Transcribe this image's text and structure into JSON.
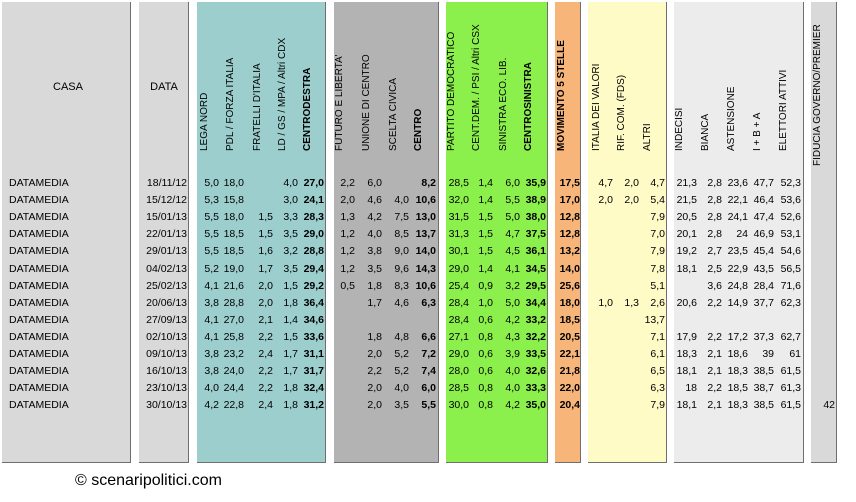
{
  "colors": {
    "casa": "#d9d9d9",
    "data": "#d9d9d9",
    "centrodestra": "#9dcece",
    "centro": "#b3b3b3",
    "centrosinistra": "#8bef4c",
    "m5s": "#f8b57a",
    "csx_small": "#fffbc7",
    "indecisi": "#ececec",
    "fiducia": "#d9d9d9"
  },
  "headers": {
    "casa": "CASA",
    "data": "DATA",
    "lega_nord": "LEGA NORD",
    "pdl": "PDL / FORZA ITALIA",
    "fdi": "FRATELLI D'ITALIA",
    "ld": "LD / GS / MPA / Altri CDX",
    "centrodestra": "CENTRODESTRA",
    "fli": "FUTURO E LIBERTA'",
    "udc": "UNIONE DI CENTRO",
    "sc": "SCELTA CIVICA",
    "centro": "CENTRO",
    "pd": "PARTITO DEMOCRATICO",
    "centdem": "CENT.DEM. / PSI / Altri CSX",
    "sel": "SINISTRA ECO. LIB.",
    "centrosinistra": "CENTROSINISTRA",
    "m5s": "MOVIMENTO 5 STELLE",
    "idv": "ITALIA DEI VALORI",
    "rif": "RIF. COM. (FDS)",
    "altri": "ALTRI",
    "indecisi": "INDECISI",
    "bianca": "BIANCA",
    "astensione": "ASTENSIONE",
    "iba": "I + B + A",
    "elettori": "ELETTORI ATTIVI",
    "fiducia": "FIDUCIA GOVERNO/PREMIER"
  },
  "rows": [
    {
      "casa": "DATAMEDIA",
      "data": "18/11/12",
      "ln": "5,0",
      "pdl": "18,0",
      "fdi": "",
      "ld": "4,0",
      "cdx": "27,0",
      "fli": "2,2",
      "udc": "6,0",
      "sc": "",
      "centro": "8,2",
      "pd": "28,5",
      "cd": "1,4",
      "sel": "6,0",
      "csx": "35,9",
      "m5s": "17,5",
      "idv": "4,7",
      "rif": "2,0",
      "altri": "4,7",
      "ind": "21,3",
      "bia": "2,8",
      "ast": "23,6",
      "iba": "47,7",
      "ele": "52,3",
      "fid": ""
    },
    {
      "casa": "DATAMEDIA",
      "data": "15/12/12",
      "ln": "5,3",
      "pdl": "15,8",
      "fdi": "",
      "ld": "3,0",
      "cdx": "24,1",
      "fli": "2,0",
      "udc": "4,6",
      "sc": "4,0",
      "centro": "10,6",
      "pd": "32,0",
      "cd": "1,4",
      "sel": "5,5",
      "csx": "38,9",
      "m5s": "17,0",
      "idv": "2,0",
      "rif": "2,0",
      "altri": "5,4",
      "ind": "21,5",
      "bia": "2,8",
      "ast": "22,1",
      "iba": "46,4",
      "ele": "53,6",
      "fid": ""
    },
    {
      "casa": "DATAMEDIA",
      "data": "15/01/13",
      "ln": "5,5",
      "pdl": "18,0",
      "fdi": "1,5",
      "ld": "3,3",
      "cdx": "28,3",
      "fli": "1,3",
      "udc": "4,2",
      "sc": "7,5",
      "centro": "13,0",
      "pd": "31,5",
      "cd": "1,5",
      "sel": "5,0",
      "csx": "38,0",
      "m5s": "12,8",
      "idv": "",
      "rif": "",
      "altri": "7,9",
      "ind": "20,5",
      "bia": "2,8",
      "ast": "24,1",
      "iba": "47,4",
      "ele": "52,6",
      "fid": ""
    },
    {
      "casa": "DATAMEDIA",
      "data": "22/01/13",
      "ln": "5,5",
      "pdl": "18,5",
      "fdi": "1,5",
      "ld": "3,5",
      "cdx": "29,0",
      "fli": "1,2",
      "udc": "4,0",
      "sc": "8,5",
      "centro": "13,7",
      "pd": "31,3",
      "cd": "1,5",
      "sel": "4,7",
      "csx": "37,5",
      "m5s": "12,8",
      "idv": "",
      "rif": "",
      "altri": "7,0",
      "ind": "20,1",
      "bia": "2,8",
      "ast": "24",
      "iba": "46,9",
      "ele": "53,1",
      "fid": ""
    },
    {
      "casa": "DATAMEDIA",
      "data": "29/01/13",
      "ln": "5,5",
      "pdl": "18,5",
      "fdi": "1,6",
      "ld": "3,2",
      "cdx": "28,8",
      "fli": "1,2",
      "udc": "3,8",
      "sc": "9,0",
      "centro": "14,0",
      "pd": "30,1",
      "cd": "1,5",
      "sel": "4,5",
      "csx": "36,1",
      "m5s": "13,2",
      "idv": "",
      "rif": "",
      "altri": "7,9",
      "ind": "19,2",
      "bia": "2,7",
      "ast": "23,5",
      "iba": "45,4",
      "ele": "54,6",
      "fid": ""
    },
    {
      "casa": "DATAMEDIA",
      "data": "04/02/13",
      "ln": "5,2",
      "pdl": "19,0",
      "fdi": "1,7",
      "ld": "3,5",
      "cdx": "29,4",
      "fli": "1,2",
      "udc": "3,5",
      "sc": "9,6",
      "centro": "14,3",
      "pd": "29,0",
      "cd": "1,4",
      "sel": "4,1",
      "csx": "34,5",
      "m5s": "14,0",
      "idv": "",
      "rif": "",
      "altri": "7,8",
      "ind": "18,1",
      "bia": "2,5",
      "ast": "22,9",
      "iba": "43,5",
      "ele": "56,5",
      "fid": ""
    },
    {
      "casa": "DATAMEDIA",
      "data": "25/02/13",
      "ln": "4,1",
      "pdl": "21,6",
      "fdi": "2,0",
      "ld": "1,5",
      "cdx": "29,2",
      "fli": "0,5",
      "udc": "1,8",
      "sc": "8,3",
      "centro": "10,6",
      "pd": "25,4",
      "cd": "0,9",
      "sel": "3,2",
      "csx": "29,5",
      "m5s": "25,6",
      "idv": "",
      "rif": "",
      "altri": "5,1",
      "ind": "",
      "bia": "3,6",
      "ast": "24,8",
      "iba": "28,4",
      "ele": "71,6",
      "fid": ""
    },
    {
      "casa": "DATAMEDIA",
      "data": "20/06/13",
      "ln": "3,8",
      "pdl": "28,8",
      "fdi": "2,0",
      "ld": "1,8",
      "cdx": "36,4",
      "fli": "",
      "udc": "1,7",
      "sc": "4,6",
      "centro": "6,3",
      "pd": "28,4",
      "cd": "1,0",
      "sel": "5,0",
      "csx": "34,4",
      "m5s": "18,0",
      "idv": "1,0",
      "rif": "1,3",
      "altri": "2,6",
      "ind": "20,6",
      "bia": "2,2",
      "ast": "14,9",
      "iba": "37,7",
      "ele": "62,3",
      "fid": ""
    },
    {
      "casa": "DATAMEDIA",
      "data": "27/09/13",
      "ln": "4,1",
      "pdl": "27,0",
      "fdi": "2,1",
      "ld": "1,4",
      "cdx": "34,6",
      "fli": "",
      "udc": "",
      "sc": "",
      "centro": "",
      "pd": "28,4",
      "cd": "0,6",
      "sel": "4,2",
      "csx": "33,2",
      "m5s": "18,5",
      "idv": "",
      "rif": "",
      "altri": "13,7",
      "ind": "",
      "bia": "",
      "ast": "",
      "iba": "",
      "ele": "",
      "fid": ""
    },
    {
      "casa": "DATAMEDIA",
      "data": "02/10/13",
      "ln": "4,1",
      "pdl": "25,8",
      "fdi": "2,2",
      "ld": "1,5",
      "cdx": "33,6",
      "fli": "",
      "udc": "1,8",
      "sc": "4,8",
      "centro": "6,6",
      "pd": "27,1",
      "cd": "0,8",
      "sel": "4,3",
      "csx": "32,2",
      "m5s": "20,5",
      "idv": "",
      "rif": "",
      "altri": "7,1",
      "ind": "17,9",
      "bia": "2,2",
      "ast": "17,2",
      "iba": "37,3",
      "ele": "62,7",
      "fid": ""
    },
    {
      "casa": "DATAMEDIA",
      "data": "09/10/13",
      "ln": "3,8",
      "pdl": "23,2",
      "fdi": "2,4",
      "ld": "1,7",
      "cdx": "31,1",
      "fli": "",
      "udc": "2,0",
      "sc": "5,2",
      "centro": "7,2",
      "pd": "29,0",
      "cd": "0,6",
      "sel": "3,9",
      "csx": "33,5",
      "m5s": "22,1",
      "idv": "",
      "rif": "",
      "altri": "6,1",
      "ind": "18,3",
      "bia": "2,1",
      "ast": "18,6",
      "iba": "39",
      "ele": "61",
      "fid": ""
    },
    {
      "casa": "DATAMEDIA",
      "data": "16/10/13",
      "ln": "3,8",
      "pdl": "24,0",
      "fdi": "2,2",
      "ld": "1,7",
      "cdx": "31,7",
      "fli": "",
      "udc": "2,2",
      "sc": "5,2",
      "centro": "7,4",
      "pd": "28,0",
      "cd": "0,6",
      "sel": "4,0",
      "csx": "32,6",
      "m5s": "21,8",
      "idv": "",
      "rif": "",
      "altri": "6,5",
      "ind": "18,1",
      "bia": "2,1",
      "ast": "18,3",
      "iba": "38,5",
      "ele": "61,5",
      "fid": ""
    },
    {
      "casa": "DATAMEDIA",
      "data": "23/10/13",
      "ln": "4,0",
      "pdl": "24,4",
      "fdi": "2,2",
      "ld": "1,8",
      "cdx": "32,4",
      "fli": "",
      "udc": "2,0",
      "sc": "4,0",
      "centro": "6,0",
      "pd": "28,5",
      "cd": "0,8",
      "sel": "4,0",
      "csx": "33,3",
      "m5s": "22,0",
      "idv": "",
      "rif": "",
      "altri": "6,3",
      "ind": "18",
      "bia": "2,2",
      "ast": "18,5",
      "iba": "38,7",
      "ele": "61,3",
      "fid": ""
    },
    {
      "casa": "DATAMEDIA",
      "data": "30/10/13",
      "ln": "4,2",
      "pdl": "22,8",
      "fdi": "2,4",
      "ld": "1,8",
      "cdx": "31,2",
      "fli": "",
      "udc": "2,0",
      "sc": "3,5",
      "centro": "5,5",
      "pd": "30,0",
      "cd": "0,8",
      "sel": "4,2",
      "csx": "35,0",
      "m5s": "20,4",
      "idv": "",
      "rif": "",
      "altri": "7,9",
      "ind": "18,1",
      "bia": "2,1",
      "ast": "18,3",
      "iba": "38,5",
      "ele": "61,5",
      "fid": "42"
    }
  ],
  "credit": "© scenaripolitici.com"
}
